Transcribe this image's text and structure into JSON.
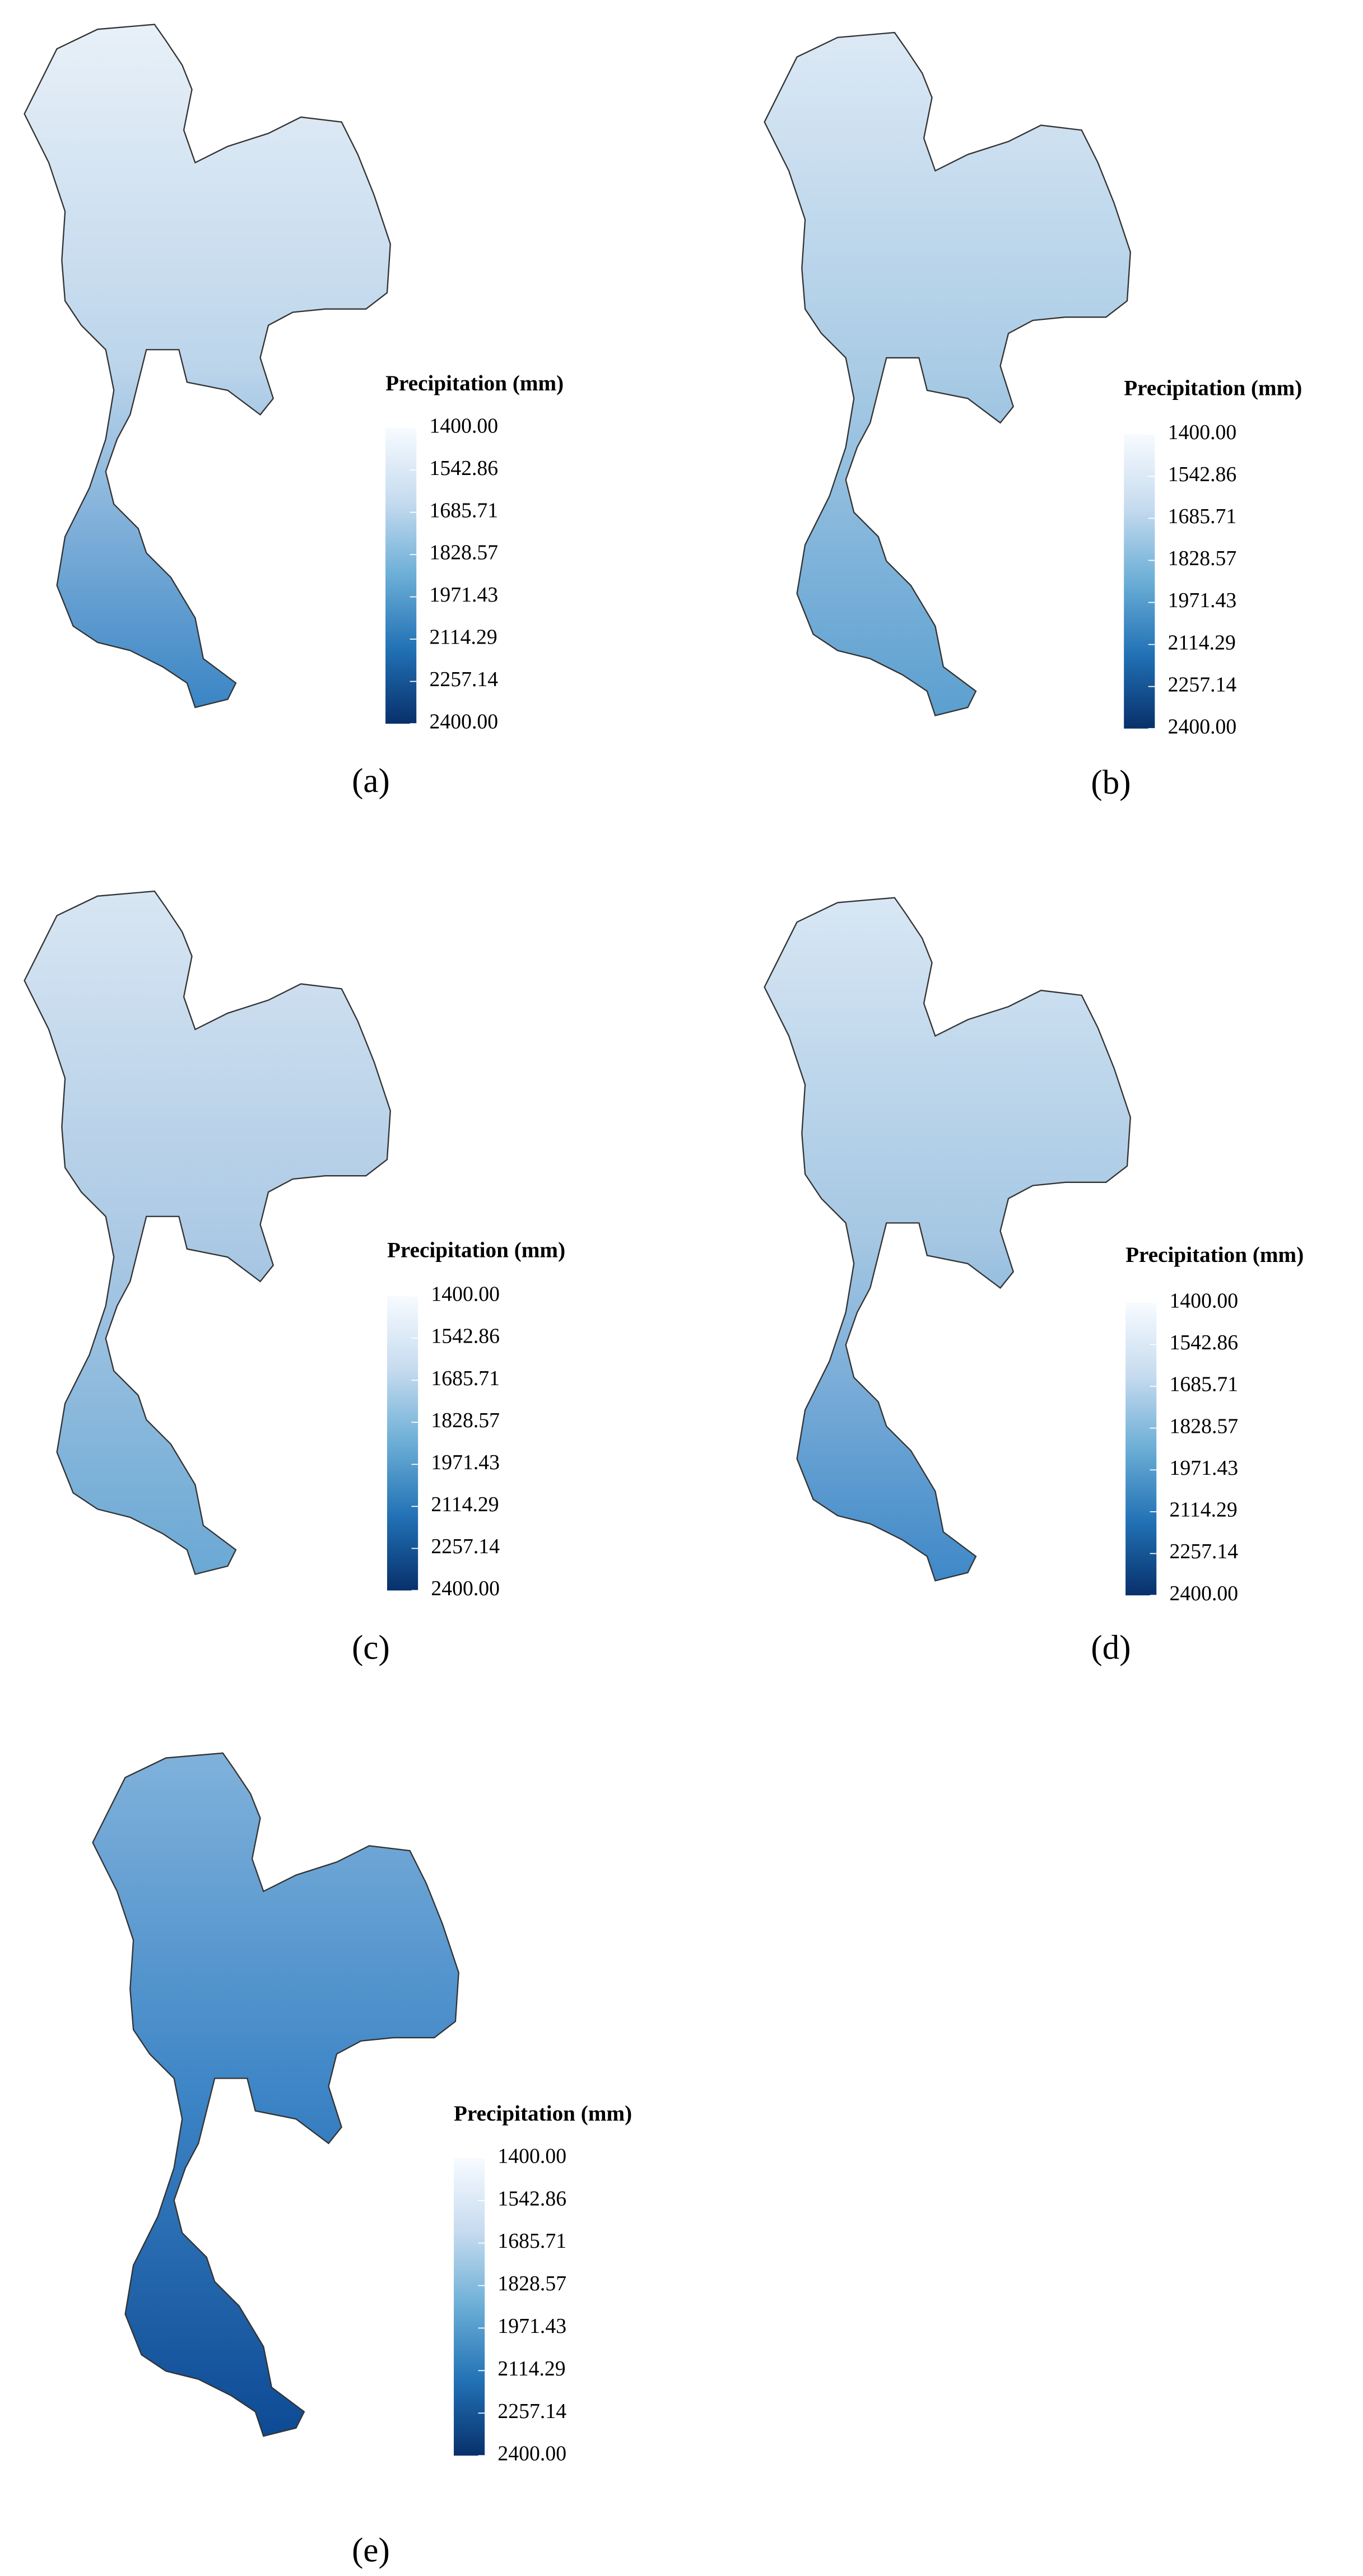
{
  "colorbar_colors": [
    "#f7fbff",
    "#c6dbef",
    "#6baed6",
    "#2171b5",
    "#08306b"
  ],
  "panels": [
    {
      "caption": "(a)",
      "fill_colors": [
        "#e8f0f8",
        "#bcd5eb",
        "#3a85c5"
      ],
      "legend": {
        "title": "Precipitation (mm)",
        "ticks": [
          {
            "value": 1400,
            "label": "1400.00"
          },
          {
            "value": 1542.86,
            "label": "1542.86"
          },
          {
            "value": 1685.71,
            "label": "1685.71"
          },
          {
            "value": 1828.57,
            "label": "1828.57"
          },
          {
            "value": 1971.43,
            "label": "1971.43"
          },
          {
            "value": 2114.29,
            "label": "2114.29"
          },
          {
            "value": 2257.14,
            "label": "2257.14"
          },
          {
            "value": 2400,
            "label": "2400.00"
          }
        ]
      }
    },
    {
      "caption": "(b)",
      "fill_colors": [
        "#dce9f5",
        "#a9cbe5",
        "#5b9fd0"
      ],
      "legend": {
        "title": "Precipitation (mm)",
        "ticks": [
          {
            "value": 1400,
            "label": "1400.00"
          },
          {
            "value": 1542.86,
            "label": "1542.86"
          },
          {
            "value": 1685.71,
            "label": "1685.71"
          },
          {
            "value": 1828.57,
            "label": "1828.57"
          },
          {
            "value": 1971.43,
            "label": "1971.43"
          },
          {
            "value": 2114.29,
            "label": "2114.29"
          },
          {
            "value": 2257.14,
            "label": "2257.14"
          },
          {
            "value": 2400,
            "label": "2400.00"
          }
        ]
      }
    },
    {
      "caption": "(c)",
      "fill_colors": [
        "#d8e6f3",
        "#adcae5",
        "#6aa8d4"
      ],
      "legend": {
        "title": "Precipitation (mm)",
        "ticks": [
          {
            "value": 1400,
            "label": "1400.00"
          },
          {
            "value": 1542.86,
            "label": "1542.86"
          },
          {
            "value": 1685.71,
            "label": "1685.71"
          },
          {
            "value": 1828.57,
            "label": "1828.57"
          },
          {
            "value": 1971.43,
            "label": "1971.43"
          },
          {
            "value": 2114.29,
            "label": "2114.29"
          },
          {
            "value": 2257.14,
            "label": "2257.14"
          },
          {
            "value": 2400,
            "label": "2400.00"
          }
        ]
      }
    },
    {
      "caption": "(d)",
      "fill_colors": [
        "#d8e7f4",
        "#a5c7e3",
        "#3e88c8"
      ],
      "legend": {
        "title": "Precipitation (mm)",
        "ticks": [
          {
            "value": 1400,
            "label": "1400.00"
          },
          {
            "value": 1542.86,
            "label": "1542.86"
          },
          {
            "value": 1685.71,
            "label": "1685.71"
          },
          {
            "value": 1828.57,
            "label": "1828.57"
          },
          {
            "value": 1971.43,
            "label": "1971.43"
          },
          {
            "value": 2114.29,
            "label": "2114.29"
          },
          {
            "value": 2257.14,
            "label": "2257.14"
          },
          {
            "value": 2400,
            "label": "2400.00"
          }
        ]
      }
    },
    {
      "caption": "(e)",
      "fill_colors": [
        "#80b2db",
        "#3d85c6",
        "#0d4a94"
      ],
      "legend": {
        "title": "Precipitation (mm)",
        "ticks": [
          {
            "value": 1400,
            "label": "1400.00"
          },
          {
            "value": 1542.86,
            "label": "1542.86"
          },
          {
            "value": 1685.71,
            "label": "1685.71"
          },
          {
            "value": 1828.57,
            "label": "1828.57"
          },
          {
            "value": 1971.43,
            "label": "1971.43"
          },
          {
            "value": 2114.29,
            "label": "2114.29"
          },
          {
            "value": 2257.14,
            "label": "2257.14"
          },
          {
            "value": 2400,
            "label": "2400.00"
          }
        ]
      }
    }
  ]
}
